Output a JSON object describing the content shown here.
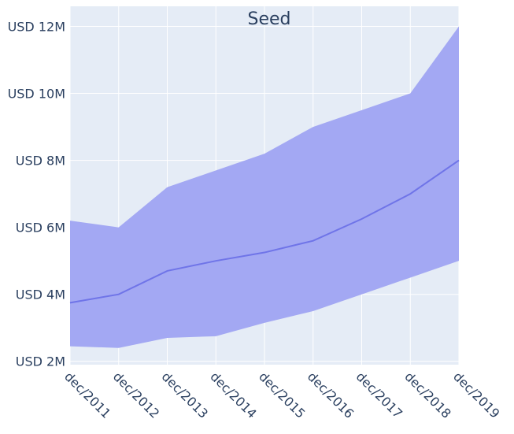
{
  "chart_data": {
    "type": "area",
    "title": "Seed",
    "xlabel": "",
    "ylabel": "",
    "categories": [
      "dec/2011",
      "dec/2012",
      "dec/2013",
      "dec/2014",
      "dec/2015",
      "dec/2016",
      "dec/2017",
      "dec/2018",
      "dec/2019"
    ],
    "y_ticks": [
      2000000,
      4000000,
      6000000,
      8000000,
      10000000,
      12000000
    ],
    "y_tick_labels": [
      "USD 2M",
      "USD 4M",
      "USD 6M",
      "USD 8M",
      "USD 10M",
      "USD 12M"
    ],
    "ylim": [
      1900000,
      12600000
    ],
    "grid": true,
    "legend": "none",
    "series": [
      {
        "role": "upper",
        "values": [
          6200000,
          6000000,
          7200000,
          7700000,
          8200000,
          9000000,
          9500000,
          10000000,
          12000000
        ]
      },
      {
        "role": "median",
        "values": [
          3750000,
          4000000,
          4700000,
          5000000,
          5250000,
          5600000,
          6250000,
          7000000,
          8000000
        ]
      },
      {
        "role": "lower",
        "values": [
          2450000,
          2400000,
          2700000,
          2750000,
          3150000,
          3500000,
          4000000,
          4500000,
          5000000
        ]
      }
    ],
    "colors": {
      "band_fill": "#a3a8f3",
      "median_line": "#6f74e8",
      "plot_background": "#e5ecf6",
      "grid": "#ffffff",
      "text": "#2a3f5f"
    }
  }
}
